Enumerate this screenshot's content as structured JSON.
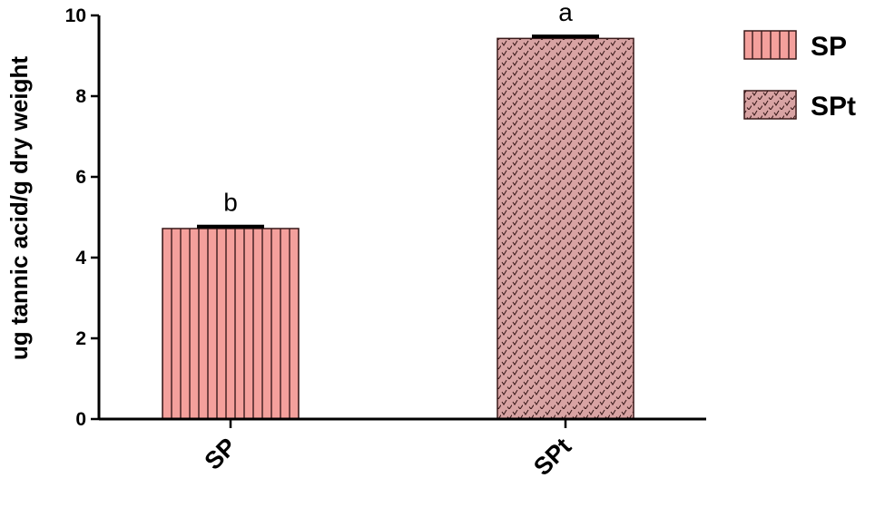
{
  "chart_data": {
    "type": "bar",
    "categories": [
      "SP",
      "SPt"
    ],
    "values": [
      4.72,
      9.43
    ],
    "errors": [
      0.05,
      0.05
    ],
    "significance": [
      "b",
      "a"
    ],
    "ylabel": "ug tannic acid/g dry weight",
    "ylim": [
      0,
      10
    ],
    "yticks": [
      "0",
      "2",
      "4",
      "6",
      "8",
      "10"
    ],
    "grid": false,
    "legend_position": "top-right",
    "legend": [
      {
        "label": "SP",
        "pattern": "vertical-stripes",
        "color": "#f4a09c"
      },
      {
        "label": "SPt",
        "pattern": "dotted-checks",
        "color": "#d8a3a3"
      }
    ]
  }
}
